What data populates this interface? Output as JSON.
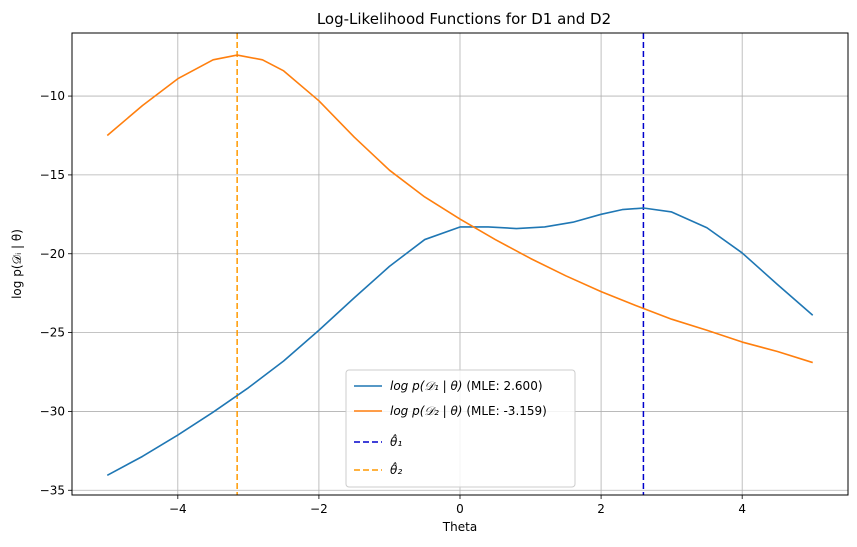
{
  "chart_data": {
    "type": "line",
    "title": "Log-Likelihood Functions for D1 and D2",
    "xlabel": "Theta",
    "ylabel": "log p(𝒟ᵢ | θ)",
    "xlim": [
      -5.5,
      5.5
    ],
    "ylim": [
      -35.3,
      -6.0
    ],
    "xticks": [
      -4,
      -2,
      0,
      2,
      4
    ],
    "xtick_labels": [
      "−4",
      "−2",
      "0",
      "2",
      "4"
    ],
    "yticks": [
      -35,
      -30,
      -25,
      -20,
      -15,
      -10
    ],
    "ytick_labels": [
      "−35",
      "−30",
      "−25",
      "−20",
      "−15",
      "−10"
    ],
    "grid": true,
    "legend_position": "lower-center",
    "series": [
      {
        "name": "log p(𝒟₁ | θ) (MLE: 2.600)",
        "color": "#1f77b4",
        "style": "solid",
        "points": [
          [
            -5.0,
            -34.05
          ],
          [
            -4.5,
            -32.85
          ],
          [
            -4.0,
            -31.5
          ],
          [
            -3.5,
            -30.05
          ],
          [
            -3.0,
            -28.5
          ],
          [
            -2.5,
            -26.8
          ],
          [
            -2.0,
            -24.85
          ],
          [
            -1.5,
            -22.8
          ],
          [
            -1.0,
            -20.8
          ],
          [
            -0.5,
            -19.1
          ],
          [
            0.0,
            -18.3
          ],
          [
            0.4,
            -18.3
          ],
          [
            0.8,
            -18.4
          ],
          [
            1.2,
            -18.3
          ],
          [
            1.6,
            -18.0
          ],
          [
            2.0,
            -17.5
          ],
          [
            2.3,
            -17.2
          ],
          [
            2.6,
            -17.1
          ],
          [
            3.0,
            -17.35
          ],
          [
            3.5,
            -18.35
          ],
          [
            4.0,
            -19.95
          ],
          [
            4.5,
            -21.95
          ],
          [
            5.0,
            -23.9
          ]
        ]
      },
      {
        "name": "log p(𝒟₂ | θ) (MLE: -3.159)",
        "color": "#ff7f0e",
        "style": "solid",
        "points": [
          [
            -5.0,
            -12.5
          ],
          [
            -4.5,
            -10.6
          ],
          [
            -4.0,
            -8.9
          ],
          [
            -3.5,
            -7.7
          ],
          [
            -3.159,
            -7.4
          ],
          [
            -2.8,
            -7.7
          ],
          [
            -2.5,
            -8.4
          ],
          [
            -2.0,
            -10.3
          ],
          [
            -1.5,
            -12.6
          ],
          [
            -1.0,
            -14.7
          ],
          [
            -0.5,
            -16.4
          ],
          [
            0.0,
            -17.8
          ],
          [
            0.5,
            -19.1
          ],
          [
            1.0,
            -20.3
          ],
          [
            1.5,
            -21.4
          ],
          [
            2.0,
            -22.4
          ],
          [
            2.5,
            -23.3
          ],
          [
            3.0,
            -24.15
          ],
          [
            3.5,
            -24.85
          ],
          [
            4.0,
            -25.6
          ],
          [
            4.5,
            -26.2
          ],
          [
            5.0,
            -26.9
          ]
        ]
      }
    ],
    "vlines": [
      {
        "name": "θ̂₁",
        "x": 2.6,
        "color": "#0000cc",
        "style": "dashed"
      },
      {
        "name": "θ̂₂",
        "x": -3.159,
        "color": "#ff9900",
        "style": "dashed"
      }
    ],
    "legend_entries": [
      {
        "label_main": "log p(𝒟₁ | θ)",
        "label_suffix": " (MLE: 2.600)",
        "color": "#1f77b4",
        "style": "solid"
      },
      {
        "label_main": "log p(𝒟₂ | θ)",
        "label_suffix": " (MLE: -3.159)",
        "color": "#ff7f0e",
        "style": "solid"
      },
      {
        "label_main": "θ̂₁",
        "label_suffix": "",
        "color": "#0000cc",
        "style": "dashed"
      },
      {
        "label_main": "θ̂₂",
        "label_suffix": "",
        "color": "#ff9900",
        "style": "dashed"
      }
    ]
  }
}
